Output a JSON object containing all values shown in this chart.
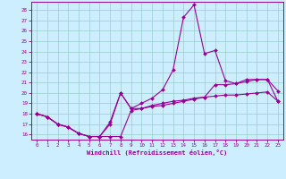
{
  "xlabel": "Windchill (Refroidissement éolien,°C)",
  "xlim": [
    -0.5,
    23.5
  ],
  "ylim": [
    15.5,
    28.8
  ],
  "yticks": [
    16,
    17,
    18,
    19,
    20,
    21,
    22,
    23,
    24,
    25,
    26,
    27,
    28
  ],
  "xticks": [
    0,
    1,
    2,
    3,
    4,
    5,
    6,
    7,
    8,
    9,
    10,
    11,
    12,
    13,
    14,
    15,
    16,
    17,
    18,
    19,
    20,
    21,
    22,
    23
  ],
  "bg_color": "#cceeff",
  "grid_color": "#99cccc",
  "line_color": "#990099",
  "curve1_x": [
    0,
    1,
    2,
    3,
    4,
    5,
    6,
    7,
    8,
    9,
    10,
    11,
    12,
    13,
    14,
    15,
    16,
    17,
    18,
    19,
    20,
    21,
    22,
    23
  ],
  "curve1_y": [
    18.0,
    17.7,
    17.0,
    16.7,
    16.1,
    15.8,
    15.8,
    17.0,
    20.0,
    18.5,
    18.5,
    18.8,
    19.0,
    19.2,
    19.3,
    19.5,
    19.6,
    19.7,
    19.8,
    19.8,
    19.9,
    20.0,
    20.1,
    19.2
  ],
  "curve2_x": [
    0,
    1,
    2,
    3,
    4,
    5,
    6,
    7,
    8,
    9,
    10,
    11,
    12,
    13,
    14,
    15,
    16,
    17,
    18,
    19,
    20,
    21,
    22,
    23
  ],
  "curve2_y": [
    18.0,
    17.7,
    17.0,
    16.7,
    16.1,
    15.8,
    15.8,
    17.2,
    20.0,
    18.5,
    19.0,
    19.5,
    20.3,
    22.2,
    27.3,
    28.5,
    23.8,
    24.1,
    21.2,
    20.9,
    21.3,
    21.3,
    21.3,
    20.2
  ],
  "curve3_x": [
    0,
    1,
    2,
    3,
    4,
    5,
    6,
    7,
    8,
    9,
    10,
    11,
    12,
    13,
    14,
    15,
    16,
    17,
    18,
    19,
    20,
    21,
    22,
    23
  ],
  "curve3_y": [
    18.0,
    17.7,
    17.0,
    16.7,
    16.1,
    15.8,
    15.8,
    15.8,
    15.8,
    18.3,
    18.5,
    18.7,
    18.8,
    19.0,
    19.2,
    19.4,
    19.6,
    20.8,
    20.8,
    20.9,
    21.1,
    21.3,
    21.3,
    19.2
  ],
  "markersize": 2.0,
  "linewidth": 0.8
}
